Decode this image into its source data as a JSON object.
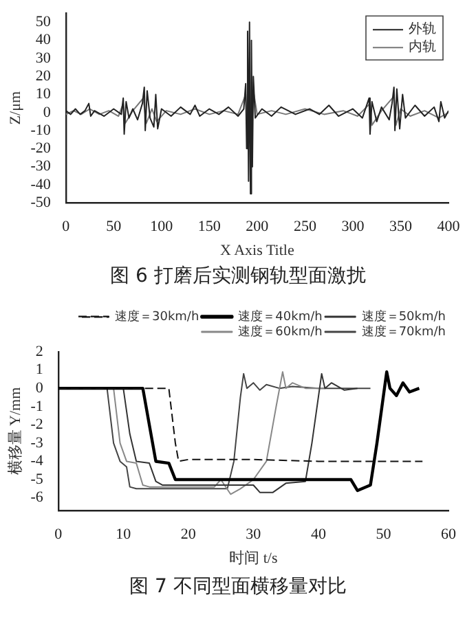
{
  "chart_data": [
    {
      "type": "line",
      "title": "图 6 打磨后实测钢轨型面激扰",
      "xlabel": "X Axis Title",
      "ylabel": "Z/μm",
      "xlim": [
        0,
        400
      ],
      "xticks": [
        0,
        50,
        100,
        150,
        200,
        250,
        300,
        350,
        400
      ],
      "ylim": [
        -50,
        55
      ],
      "yticks": [
        -50,
        -40,
        -30,
        -20,
        -10,
        0,
        10,
        20,
        30,
        40,
        50
      ],
      "grid": false,
      "legend": "top right",
      "marker": "none",
      "series": [
        {
          "name": "外轨",
          "color": "#222222",
          "x": [
            0,
            5,
            10,
            15,
            20,
            24,
            26,
            30,
            40,
            50,
            58,
            60,
            61,
            63,
            66,
            70,
            75,
            80,
            82,
            83,
            85,
            88,
            92,
            94,
            96,
            100,
            110,
            120,
            130,
            135,
            140,
            150,
            160,
            170,
            180,
            186,
            188,
            189,
            190,
            191,
            192,
            193,
            194,
            195,
            196,
            198,
            205,
            215,
            225,
            240,
            255,
            265,
            275,
            285,
            300,
            310,
            317,
            318,
            320,
            325,
            330,
            338,
            341,
            343,
            344,
            346,
            349,
            352,
            355,
            365,
            375,
            385,
            390,
            392,
            396,
            400
          ],
          "values": [
            1,
            -1,
            2,
            -1,
            1,
            5,
            -2,
            1,
            -2,
            2,
            -1,
            8,
            -12,
            6,
            -3,
            2,
            -4,
            5,
            14,
            -10,
            12,
            -3,
            -8,
            10,
            -9,
            2,
            -2,
            3,
            -1,
            4,
            -2,
            2,
            -1,
            3,
            -2,
            2,
            16,
            -20,
            45,
            -38,
            50,
            -45,
            40,
            -30,
            20,
            -3,
            2,
            -2,
            3,
            -1,
            2,
            -1,
            4,
            -2,
            2,
            -3,
            8,
            -12,
            6,
            -5,
            3,
            -4,
            5,
            14,
            -10,
            13,
            -9,
            10,
            -3,
            4,
            -2,
            3,
            -5,
            6,
            -3,
            1
          ]
        },
        {
          "name": "内轨",
          "color": "#777777",
          "x": [
            0,
            8,
            16,
            25,
            35,
            45,
            55,
            60,
            62,
            70,
            81,
            84,
            90,
            95,
            105,
            120,
            135,
            150,
            165,
            180,
            188,
            190,
            192,
            194,
            196,
            200,
            215,
            230,
            250,
            270,
            290,
            305,
            318,
            320,
            330,
            343,
            345,
            350,
            360,
            375,
            390,
            400
          ],
          "values": [
            -1,
            1,
            -1,
            2,
            -1,
            1,
            -2,
            5,
            -6,
            1,
            8,
            -6,
            2,
            -5,
            1,
            -1,
            2,
            -1,
            1,
            -1,
            10,
            -15,
            30,
            -25,
            12,
            -1,
            1,
            -1,
            2,
            -1,
            1,
            -2,
            5,
            -7,
            1,
            9,
            -7,
            2,
            -2,
            1,
            -3,
            0
          ]
        }
      ]
    },
    {
      "type": "line",
      "title": "图 7 不同型面横移量对比",
      "xlabel": "时间 t/s",
      "ylabel": "横移量 Y/mm",
      "xlim": [
        0,
        60
      ],
      "xticks": [
        0,
        10,
        20,
        30,
        40,
        50,
        60
      ],
      "ylim": [
        -6.7,
        2
      ],
      "yticks": [
        -6,
        -5,
        -4,
        -3,
        -2,
        -1,
        0,
        1,
        2
      ],
      "grid": false,
      "legend": "top",
      "marker": "none",
      "series": [
        {
          "name": "速度＝30km/h",
          "color": "#111111",
          "line_style": "dashed",
          "x": [
            0,
            17,
            18,
            18.5,
            20,
            30,
            40,
            50,
            56
          ],
          "values": [
            0,
            0,
            -3,
            -4,
            -3.9,
            -3.9,
            -4,
            -4,
            -4
          ]
        },
        {
          "name": "速度＝40km/h",
          "color": "#000000",
          "x": [
            0,
            13,
            14,
            15,
            17,
            18,
            30,
            45,
            46,
            48,
            49,
            50.5,
            51,
            52,
            53,
            54,
            55.5
          ],
          "values": [
            0,
            0,
            -2,
            -4,
            -4.1,
            -5,
            -5,
            -5,
            -5.6,
            -5.3,
            -3,
            0.9,
            0,
            -0.4,
            0.3,
            -0.2,
            0
          ]
        },
        {
          "name": "速度＝50km/h",
          "color": "#333333",
          "x": [
            0,
            10,
            11,
            12,
            14,
            15,
            16,
            30,
            31,
            33,
            35,
            38,
            39,
            40.5,
            41,
            42,
            44,
            46
          ],
          "values": [
            0,
            0,
            -2.5,
            -4,
            -4.1,
            -5.1,
            -5.3,
            -5.3,
            -5.7,
            -5.7,
            -5.2,
            -5.1,
            -3,
            0.8,
            0,
            0.3,
            -0.1,
            0
          ]
        },
        {
          "name": "速度＝60km/h",
          "color": "#888888",
          "x": [
            0,
            8.5,
            9.5,
            10.5,
            12,
            13,
            14,
            24,
            25,
            26.5,
            28,
            30,
            32,
            33.5,
            34.5,
            35,
            36,
            38,
            41
          ],
          "values": [
            0,
            0,
            -3,
            -4,
            -4.1,
            -5.3,
            -5.4,
            -5.4,
            -5,
            -5.8,
            -5.5,
            -5,
            -4,
            -1,
            0.9,
            0,
            0.3,
            0,
            0
          ]
        },
        {
          "name": "速度＝70km/h",
          "color": "#444444",
          "x": [
            0,
            7.5,
            8.5,
            9.5,
            10.5,
            11,
            12,
            26,
            27,
            28,
            28.5,
            29,
            30,
            31,
            32,
            34,
            36,
            40,
            48
          ],
          "values": [
            0,
            0,
            -3,
            -4,
            -4.3,
            -5.4,
            -5.5,
            -5.5,
            -4,
            -0.5,
            0.8,
            0,
            0.3,
            -0.1,
            0.2,
            0,
            0.1,
            0,
            0
          ]
        }
      ]
    }
  ]
}
